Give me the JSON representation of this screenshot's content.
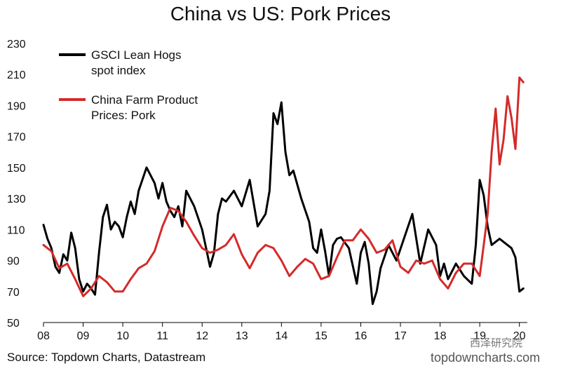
{
  "chart_data": {
    "type": "line",
    "title": "China vs US: Pork Prices",
    "xlabel": "",
    "ylabel": "",
    "xlim": [
      2008,
      2020.2
    ],
    "ylim": [
      50,
      230
    ],
    "y_ticks": [
      50,
      70,
      90,
      110,
      130,
      150,
      170,
      190,
      210,
      230
    ],
    "x_ticks": [
      {
        "value": 2008,
        "label": "08"
      },
      {
        "value": 2009,
        "label": "09"
      },
      {
        "value": 2010,
        "label": "10"
      },
      {
        "value": 2011,
        "label": "11"
      },
      {
        "value": 2012,
        "label": "12"
      },
      {
        "value": 2013,
        "label": "13"
      },
      {
        "value": 2014,
        "label": "14"
      },
      {
        "value": 2015,
        "label": "15"
      },
      {
        "value": 2016,
        "label": "16"
      },
      {
        "value": 2017,
        "label": "17"
      },
      {
        "value": 2018,
        "label": "18"
      },
      {
        "value": 2019,
        "label": "19"
      },
      {
        "value": 2020,
        "label": "20"
      }
    ],
    "grid": false,
    "legend_position": "top-left",
    "series": [
      {
        "name": "GSCI Lean Hogs spot index",
        "legend_lines": [
          "GSCI Lean Hogs",
          "spot index"
        ],
        "color": "#000000",
        "x": [
          2008.0,
          2008.1,
          2008.2,
          2008.3,
          2008.4,
          2008.5,
          2008.6,
          2008.7,
          2008.8,
          2008.9,
          2009.0,
          2009.1,
          2009.2,
          2009.3,
          2009.4,
          2009.5,
          2009.6,
          2009.7,
          2009.8,
          2009.9,
          2010.0,
          2010.1,
          2010.2,
          2010.3,
          2010.4,
          2010.6,
          2010.8,
          2010.9,
          2011.0,
          2011.1,
          2011.2,
          2011.3,
          2011.4,
          2011.5,
          2011.6,
          2011.8,
          2012.0,
          2012.1,
          2012.2,
          2012.3,
          2012.4,
          2012.5,
          2012.6,
          2012.8,
          2013.0,
          2013.2,
          2013.4,
          2013.6,
          2013.7,
          2013.8,
          2013.9,
          2014.0,
          2014.1,
          2014.2,
          2014.3,
          2014.5,
          2014.7,
          2014.8,
          2014.9,
          2015.0,
          2015.1,
          2015.2,
          2015.3,
          2015.4,
          2015.5,
          2015.7,
          2015.9,
          2016.0,
          2016.1,
          2016.2,
          2016.3,
          2016.4,
          2016.5,
          2016.7,
          2016.9,
          2017.1,
          2017.3,
          2017.5,
          2017.7,
          2017.9,
          2018.0,
          2018.1,
          2018.2,
          2018.4,
          2018.6,
          2018.8,
          2018.9,
          2019.0,
          2019.1,
          2019.2,
          2019.3,
          2019.5,
          2019.7,
          2019.8,
          2019.9,
          2020.0,
          2020.1
        ],
        "y": [
          113,
          104,
          98,
          86,
          82,
          94,
          90,
          108,
          98,
          78,
          70,
          75,
          72,
          68,
          95,
          118,
          126,
          110,
          115,
          112,
          105,
          118,
          128,
          120,
          135,
          150,
          140,
          130,
          140,
          128,
          122,
          118,
          125,
          112,
          135,
          125,
          110,
          98,
          86,
          95,
          120,
          130,
          128,
          135,
          125,
          142,
          112,
          120,
          135,
          185,
          178,
          192,
          160,
          145,
          148,
          130,
          115,
          98,
          95,
          110,
          96,
          80,
          100,
          104,
          105,
          98,
          75,
          95,
          102,
          88,
          62,
          70,
          85,
          100,
          90,
          105,
          120,
          88,
          110,
          100,
          80,
          88,
          78,
          88,
          80,
          75,
          100,
          142,
          132,
          112,
          100,
          104,
          100,
          98,
          92,
          70,
          72
        ]
      },
      {
        "name": "China Farm Product Prices: Pork",
        "legend_lines": [
          "China Farm Product",
          "Prices: Pork"
        ],
        "color": "#d42a2a",
        "x": [
          2008.0,
          2008.2,
          2008.4,
          2008.6,
          2008.8,
          2009.0,
          2009.2,
          2009.4,
          2009.6,
          2009.8,
          2010.0,
          2010.2,
          2010.4,
          2010.6,
          2010.8,
          2011.0,
          2011.2,
          2011.4,
          2011.6,
          2011.8,
          2012.0,
          2012.2,
          2012.4,
          2012.6,
          2012.8,
          2013.0,
          2013.2,
          2013.4,
          2013.6,
          2013.8,
          2014.0,
          2014.2,
          2014.4,
          2014.6,
          2014.8,
          2015.0,
          2015.2,
          2015.4,
          2015.6,
          2015.8,
          2016.0,
          2016.2,
          2016.4,
          2016.6,
          2016.8,
          2017.0,
          2017.2,
          2017.4,
          2017.6,
          2017.8,
          2018.0,
          2018.2,
          2018.4,
          2018.6,
          2018.8,
          2019.0,
          2019.1,
          2019.2,
          2019.3,
          2019.4,
          2019.5,
          2019.6,
          2019.7,
          2019.8,
          2019.9,
          2020.0,
          2020.1
        ],
        "y": [
          100,
          96,
          85,
          88,
          78,
          67,
          72,
          80,
          76,
          70,
          70,
          78,
          85,
          88,
          96,
          112,
          124,
          122,
          115,
          106,
          98,
          95,
          97,
          100,
          107,
          94,
          85,
          95,
          100,
          98,
          90,
          80,
          86,
          91,
          88,
          78,
          80,
          92,
          103,
          103,
          110,
          104,
          95,
          97,
          103,
          86,
          82,
          90,
          88,
          90,
          78,
          72,
          82,
          88,
          88,
          80,
          100,
          120,
          160,
          188,
          152,
          168,
          196,
          182,
          162,
          208,
          205
        ]
      }
    ]
  },
  "footer": {
    "source": "Source: Topdown Charts, Datastream",
    "watermark_cn": "西泽研究院",
    "watermark_url": "topdowncharts.com"
  }
}
